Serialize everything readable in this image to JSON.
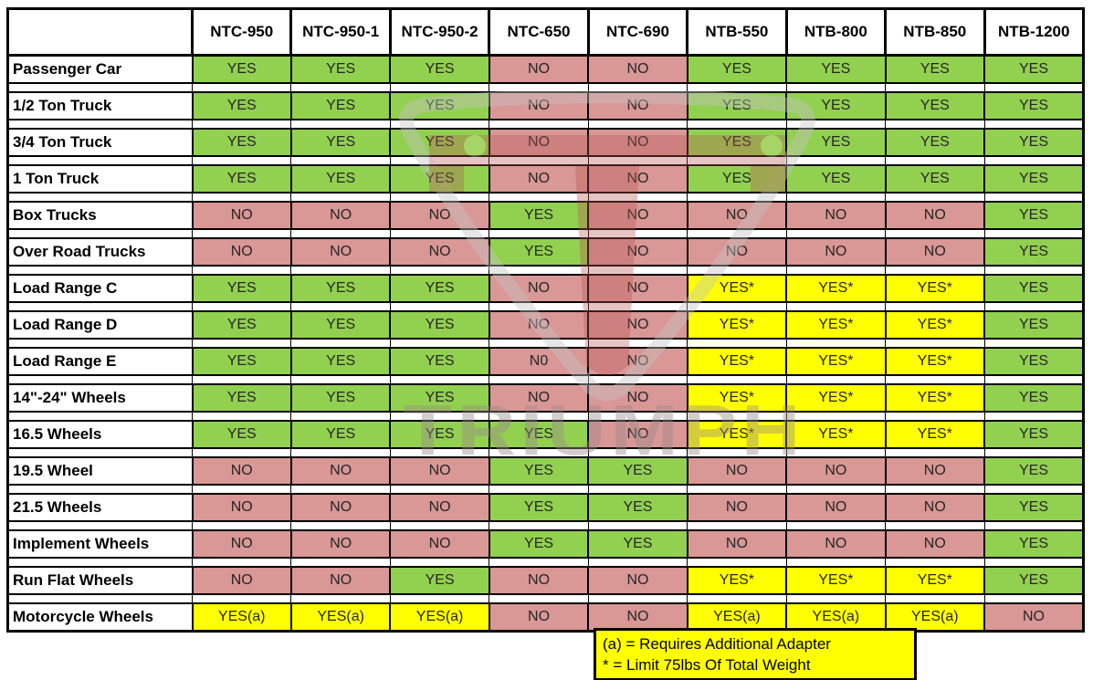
{
  "watermark": {
    "text": "TRIUMPH"
  },
  "legend_colors": {
    "yes": "#92D050",
    "no": "#D99795",
    "special": "#FFFF00"
  },
  "notes": {
    "line1": "(a) = Requires Additional Adapter",
    "line2": "* = Limit 75lbs Of Total Weight"
  },
  "chart_data": {
    "type": "table",
    "title": "Tire changer model compatibility matrix",
    "corner_label": "",
    "columns": [
      "NTC-950",
      "NTC-950-1",
      "NTC-950-2",
      "NTC-650",
      "NTC-690",
      "NTB-550",
      "NTB-800",
      "NTB-850",
      "NTB-1200"
    ],
    "rows": [
      {
        "label": "Passenger Car",
        "values": [
          "YES",
          "YES",
          "YES",
          "NO",
          "NO",
          "YES",
          "YES",
          "YES",
          "YES"
        ]
      },
      {
        "label": "1/2 Ton Truck",
        "values": [
          "YES",
          "YES",
          "YES",
          "NO",
          "NO",
          "YES",
          "YES",
          "YES",
          "YES"
        ]
      },
      {
        "label": "3/4 Ton Truck",
        "values": [
          "YES",
          "YES",
          "YES",
          "NO",
          "NO",
          "YES",
          "YES",
          "YES",
          "YES"
        ]
      },
      {
        "label": "1 Ton Truck",
        "values": [
          "YES",
          "YES",
          "YES",
          "NO",
          "NO",
          "YES",
          "YES",
          "YES",
          "YES"
        ]
      },
      {
        "label": "Box Trucks",
        "values": [
          "NO",
          "NO",
          "NO",
          "YES",
          "NO",
          "NO",
          "NO",
          "NO",
          "YES"
        ]
      },
      {
        "label": "Over Road Trucks",
        "values": [
          "NO",
          "NO",
          "NO",
          "YES",
          "NO",
          "NO",
          "NO",
          "NO",
          "YES"
        ]
      },
      {
        "label": "Load Range C",
        "values": [
          "YES",
          "YES",
          "YES",
          "NO",
          "NO",
          "YES*",
          "YES*",
          "YES*",
          "YES"
        ]
      },
      {
        "label": "Load Range D",
        "values": [
          "YES",
          "YES",
          "YES",
          "NO",
          "NO",
          "YES*",
          "YES*",
          "YES*",
          "YES"
        ]
      },
      {
        "label": "Load Range E",
        "values": [
          "YES",
          "YES",
          "YES",
          "N0",
          "NO",
          "YES*",
          "YES*",
          "YES*",
          "YES"
        ]
      },
      {
        "label": "14\"-24\" Wheels",
        "values": [
          "YES",
          "YES",
          "YES",
          "NO",
          "NO",
          "YES*",
          "YES*",
          "YES*",
          "YES"
        ]
      },
      {
        "label": "16.5 Wheels",
        "values": [
          "YES",
          "YES",
          "YES",
          "YES",
          "NO",
          "YES*",
          "YES*",
          "YES*",
          "YES"
        ]
      },
      {
        "label": "19.5 Wheel",
        "values": [
          "NO",
          "NO",
          "NO",
          "YES",
          "YES",
          "NO",
          "NO",
          "NO",
          "YES"
        ]
      },
      {
        "label": "21.5 Wheels",
        "values": [
          "NO",
          "NO",
          "NO",
          "YES",
          "YES",
          "NO",
          "NO",
          "NO",
          "YES"
        ]
      },
      {
        "label": "Implement Wheels",
        "values": [
          "NO",
          "NO",
          "NO",
          "YES",
          "YES",
          "NO",
          "NO",
          "NO",
          "YES"
        ]
      },
      {
        "label": "Run Flat Wheels",
        "values": [
          "NO",
          "NO",
          "YES",
          "NO",
          "NO",
          "YES*",
          "YES*",
          "YES*",
          "YES"
        ]
      },
      {
        "label": "Motorcycle Wheels",
        "values": [
          "YES(a)",
          "YES(a)",
          "YES(a)",
          "NO",
          "NO",
          "YES(a)",
          "YES(a)",
          "YES(a)",
          "NO"
        ]
      }
    ],
    "legend": [
      {
        "value": "YES",
        "color": "#92D050"
      },
      {
        "value": "NO",
        "color": "#D99795"
      },
      {
        "value": "YES* / YES(a)",
        "color": "#FFFF00"
      }
    ]
  }
}
